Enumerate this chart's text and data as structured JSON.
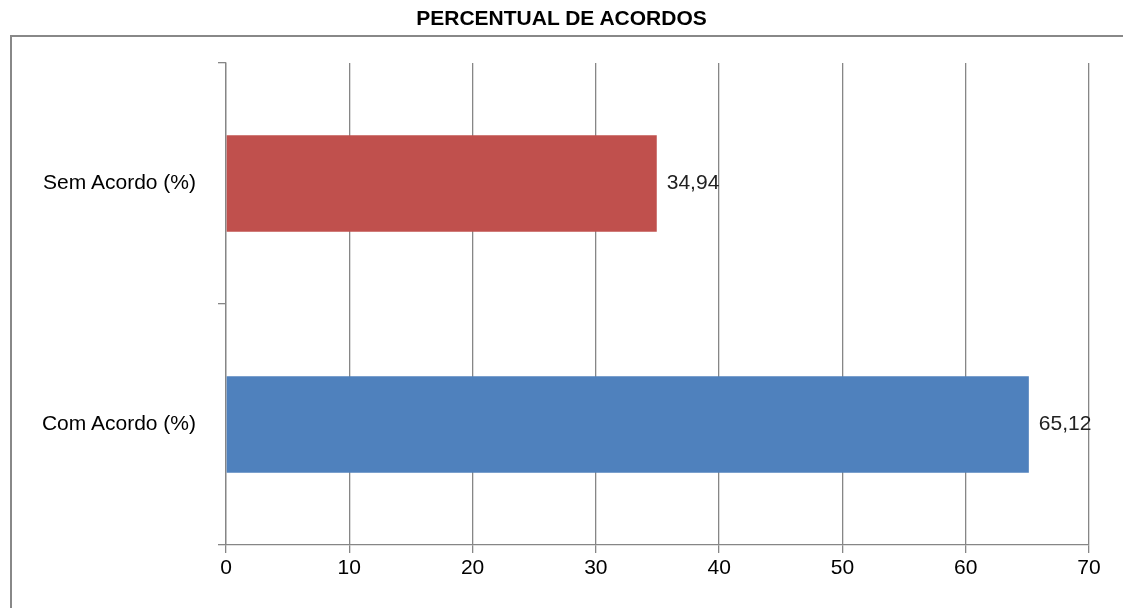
{
  "chart_data": {
    "type": "bar",
    "orientation": "horizontal",
    "title": "PERCENTUAL DE ACORDOS",
    "categories": [
      "Sem Acordo (%)",
      "Com Acordo (%)"
    ],
    "values": [
      34.94,
      65.12
    ],
    "colors": [
      "#c0504d",
      "#4f81bd"
    ],
    "value_labels": [
      "34,94",
      "65,12"
    ],
    "xlim": [
      0,
      70
    ],
    "xticks": [
      0,
      10,
      20,
      30,
      40,
      50,
      60,
      70
    ],
    "grid": "x",
    "legend": false
  }
}
